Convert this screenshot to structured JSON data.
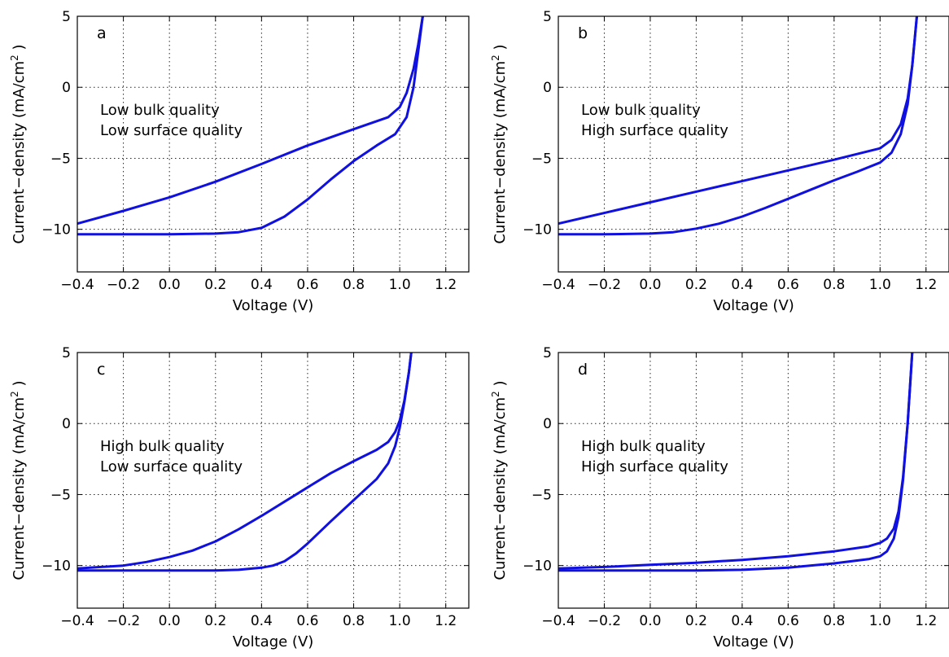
{
  "chart_data": [
    {
      "type": "line",
      "panel_label": "a",
      "annotation": [
        "Low bulk quality",
        "Low surface quality"
      ],
      "xlabel": "Voltage (V)",
      "ylabel_main": "Current−density (mA/cm",
      "ylabel_sup": "2",
      "ylabel_end": " )",
      "xlim": [
        -0.4,
        1.3
      ],
      "ylim": [
        -13,
        5
      ],
      "xticks": [
        -0.4,
        -0.2,
        0.0,
        0.2,
        0.4,
        0.6,
        0.8,
        1.0,
        1.2
      ],
      "xtick_labels": [
        "−0.4",
        "−0.2",
        "0.0",
        "0.2",
        "0.4",
        "0.6",
        "0.8",
        "1.0",
        "1.2"
      ],
      "yticks": [
        -10,
        -5,
        0,
        5
      ],
      "ytick_labels": [
        "−10",
        "−5",
        "0",
        "5"
      ],
      "grid": true,
      "line_color": "#1010e0",
      "series": [
        {
          "x": [
            -0.4,
            -0.2,
            0.0,
            0.2,
            0.4,
            0.6,
            0.8,
            0.95,
            1.0,
            1.03,
            1.06,
            1.08,
            1.1
          ],
          "y": [
            -9.6,
            -8.7,
            -7.75,
            -6.65,
            -5.4,
            -4.1,
            -2.95,
            -2.1,
            -1.4,
            -0.4,
            1.3,
            3.0,
            5.0
          ]
        },
        {
          "x": [
            -0.4,
            -0.2,
            0.0,
            0.2,
            0.3,
            0.4,
            0.5,
            0.6,
            0.7,
            0.8,
            0.9,
            0.98,
            1.03,
            1.06,
            1.08,
            1.1
          ],
          "y": [
            -10.35,
            -10.35,
            -10.35,
            -10.3,
            -10.2,
            -9.9,
            -9.1,
            -7.9,
            -6.5,
            -5.2,
            -4.1,
            -3.3,
            -2.1,
            0.0,
            2.5,
            5.0
          ]
        }
      ]
    },
    {
      "type": "line",
      "panel_label": "b",
      "annotation": [
        "Low bulk quality",
        "High surface quality"
      ],
      "xlabel": "Voltage (V)",
      "ylabel_main": "Current−density (mA/cm",
      "ylabel_sup": "2",
      "ylabel_end": " )",
      "xlim": [
        -0.4,
        1.3
      ],
      "ylim": [
        -13,
        5
      ],
      "xticks": [
        -0.4,
        -0.2,
        0.0,
        0.2,
        0.4,
        0.6,
        0.8,
        1.0,
        1.2
      ],
      "xtick_labels": [
        "−0.4",
        "−0.2",
        "0.0",
        "0.2",
        "0.4",
        "0.6",
        "0.8",
        "1.0",
        "1.2"
      ],
      "yticks": [
        -10,
        -5,
        0,
        5
      ],
      "ytick_labels": [
        "−10",
        "−5",
        "0",
        "5"
      ],
      "grid": true,
      "line_color": "#1010e0",
      "series": [
        {
          "x": [
            -0.4,
            -0.2,
            0.0,
            0.2,
            0.4,
            0.6,
            0.8,
            1.0,
            1.05,
            1.09,
            1.12,
            1.14,
            1.16
          ],
          "y": [
            -9.6,
            -8.85,
            -8.1,
            -7.35,
            -6.6,
            -5.85,
            -5.1,
            -4.3,
            -3.7,
            -2.6,
            -0.8,
            1.5,
            5.0
          ]
        },
        {
          "x": [
            -0.4,
            -0.2,
            0.0,
            0.1,
            0.2,
            0.3,
            0.4,
            0.5,
            0.6,
            0.7,
            0.8,
            0.9,
            1.0,
            1.05,
            1.09,
            1.12,
            1.14,
            1.16
          ],
          "y": [
            -10.35,
            -10.35,
            -10.3,
            -10.2,
            -9.95,
            -9.6,
            -9.1,
            -8.5,
            -7.85,
            -7.2,
            -6.55,
            -5.95,
            -5.3,
            -4.6,
            -3.3,
            -1.2,
            1.5,
            5.0
          ]
        }
      ]
    },
    {
      "type": "line",
      "panel_label": "c",
      "annotation": [
        "High bulk quality",
        "Low surface quality"
      ],
      "xlabel": "Voltage (V)",
      "ylabel_main": "Current−density (mA/cm",
      "ylabel_sup": "2",
      "ylabel_end": " )",
      "xlim": [
        -0.4,
        1.3
      ],
      "ylim": [
        -13,
        5
      ],
      "xticks": [
        -0.4,
        -0.2,
        0.0,
        0.2,
        0.4,
        0.6,
        0.8,
        1.0,
        1.2
      ],
      "xtick_labels": [
        "−0.4",
        "−0.2",
        "0.0",
        "0.2",
        "0.4",
        "0.6",
        "0.8",
        "1.0",
        "1.2"
      ],
      "yticks": [
        -10,
        -5,
        0,
        5
      ],
      "ytick_labels": [
        "−10",
        "−5",
        "0",
        "5"
      ],
      "grid": true,
      "line_color": "#1010e0",
      "series": [
        {
          "x": [
            -0.4,
            -0.2,
            -0.1,
            0.0,
            0.1,
            0.2,
            0.3,
            0.4,
            0.5,
            0.6,
            0.7,
            0.8,
            0.9,
            0.95,
            0.98,
            1.0,
            1.02,
            1.04,
            1.05
          ],
          "y": [
            -10.2,
            -10.0,
            -9.75,
            -9.4,
            -8.95,
            -8.3,
            -7.45,
            -6.5,
            -5.5,
            -4.5,
            -3.5,
            -2.65,
            -1.85,
            -1.3,
            -0.6,
            0.2,
            1.6,
            3.6,
            5.0
          ]
        },
        {
          "x": [
            -0.4,
            -0.2,
            0.0,
            0.2,
            0.3,
            0.4,
            0.45,
            0.5,
            0.55,
            0.6,
            0.7,
            0.8,
            0.9,
            0.95,
            0.98,
            1.0,
            1.02,
            1.04,
            1.05
          ],
          "y": [
            -10.35,
            -10.35,
            -10.35,
            -10.35,
            -10.3,
            -10.15,
            -10.0,
            -9.7,
            -9.15,
            -8.45,
            -6.9,
            -5.4,
            -3.9,
            -2.8,
            -1.6,
            -0.3,
            1.5,
            3.6,
            5.0
          ]
        }
      ]
    },
    {
      "type": "line",
      "panel_label": "d",
      "annotation": [
        "High bulk quality",
        "High surface quality"
      ],
      "xlabel": "Voltage (V)",
      "ylabel_main": "Current−density (mA/cm",
      "ylabel_sup": "2",
      "ylabel_end": " )",
      "xlim": [
        -0.4,
        1.3
      ],
      "ylim": [
        -13,
        5
      ],
      "xticks": [
        -0.4,
        -0.2,
        0.0,
        0.2,
        0.4,
        0.6,
        0.8,
        1.0,
        1.2
      ],
      "xtick_labels": [
        "−0.4",
        "−0.2",
        "0.0",
        "0.2",
        "0.4",
        "0.6",
        "0.8",
        "1.0",
        "1.2"
      ],
      "yticks": [
        -10,
        -5,
        0,
        5
      ],
      "ytick_labels": [
        "−10",
        "−5",
        "0",
        "5"
      ],
      "grid": true,
      "line_color": "#1010e0",
      "series": [
        {
          "x": [
            -0.4,
            -0.2,
            0.0,
            0.2,
            0.4,
            0.6,
            0.8,
            0.95,
            1.0,
            1.03,
            1.06,
            1.08,
            1.1,
            1.12,
            1.14
          ],
          "y": [
            -10.2,
            -10.1,
            -9.95,
            -9.8,
            -9.6,
            -9.35,
            -9.0,
            -8.65,
            -8.4,
            -8.1,
            -7.4,
            -6.2,
            -3.8,
            0.0,
            5.0
          ]
        },
        {
          "x": [
            -0.4,
            -0.2,
            0.0,
            0.2,
            0.4,
            0.6,
            0.8,
            0.95,
            1.0,
            1.03,
            1.06,
            1.08,
            1.1,
            1.12,
            1.14
          ],
          "y": [
            -10.35,
            -10.35,
            -10.35,
            -10.35,
            -10.3,
            -10.15,
            -9.85,
            -9.55,
            -9.35,
            -9.0,
            -8.1,
            -6.6,
            -4.0,
            0.0,
            5.0
          ]
        }
      ]
    }
  ]
}
